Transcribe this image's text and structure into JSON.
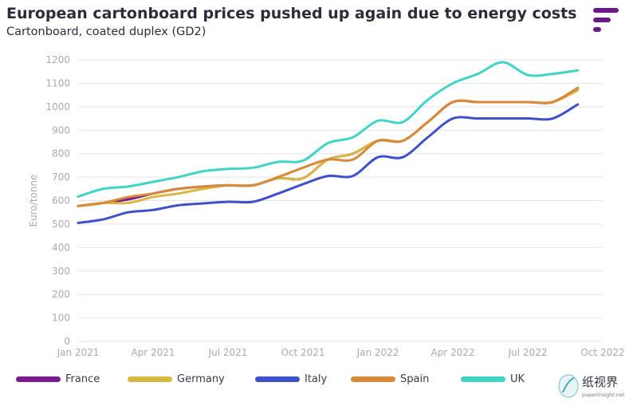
{
  "header": {
    "title": "European cartonboard prices pushed up again due to energy costs",
    "subtitle": "Cartonboard, coated duplex (GD2)"
  },
  "colors": {
    "brand": "#6b1a8a",
    "grid": "#e4e4ea",
    "axis_text": "#a9a9b6"
  },
  "watermark": {
    "text": "纸视界",
    "url_text": "paperinsight.net"
  },
  "chart_data": {
    "type": "line",
    "title": "European cartonboard prices pushed up again due to energy costs",
    "subtitle": "Cartonboard, coated duplex (GD2)",
    "xlabel": "",
    "ylabel": "Euro/tonne",
    "ylim": [
      0,
      1200
    ],
    "yticks": [
      0,
      100,
      200,
      300,
      400,
      500,
      600,
      700,
      800,
      900,
      1000,
      1100,
      1200
    ],
    "xlim": [
      0,
      21
    ],
    "xticks": [
      {
        "pos": 0,
        "label": "Jan 2021"
      },
      {
        "pos": 3,
        "label": "Apr 2021"
      },
      {
        "pos": 6,
        "label": "Jul 2021"
      },
      {
        "pos": 9,
        "label": "Oct 2021"
      },
      {
        "pos": 12,
        "label": "Jan 2022"
      },
      {
        "pos": 15,
        "label": "Apr 2022"
      },
      {
        "pos": 18,
        "label": "Jul 2022"
      },
      {
        "pos": 21,
        "label": "Oct 2022"
      }
    ],
    "grid": true,
    "legend_position": "bottom",
    "x": [
      0,
      1,
      2,
      3,
      4,
      5,
      6,
      7,
      8,
      9,
      10,
      11,
      12,
      13,
      14,
      15,
      16,
      17,
      18,
      19,
      20
    ],
    "series": [
      {
        "name": "France",
        "color": "#7a1c8e",
        "values": [
          577,
          590,
          605,
          630,
          650,
          660,
          665,
          665,
          695,
          695,
          775,
          800,
          855,
          855,
          935,
          1020,
          1020,
          1020,
          1020,
          1020,
          1080
        ]
      },
      {
        "name": "Germany",
        "color": "#d8b840",
        "values": [
          577,
          590,
          590,
          615,
          630,
          650,
          665,
          665,
          695,
          695,
          775,
          800,
          855,
          855,
          935,
          1020,
          1020,
          1020,
          1020,
          1020,
          1070
        ]
      },
      {
        "name": "Italy",
        "color": "#3f51c8",
        "values": [
          505,
          520,
          550,
          560,
          580,
          588,
          595,
          595,
          630,
          670,
          705,
          705,
          785,
          785,
          870,
          950,
          950,
          950,
          950,
          950,
          1010
        ]
      },
      {
        "name": "Spain",
        "color": "#d88a3a",
        "values": [
          577,
          590,
          615,
          630,
          650,
          660,
          665,
          665,
          700,
          740,
          775,
          775,
          855,
          855,
          935,
          1020,
          1020,
          1020,
          1020,
          1020,
          1080
        ]
      },
      {
        "name": "UK",
        "color": "#40d4c4",
        "values": [
          617,
          650,
          660,
          680,
          700,
          725,
          735,
          740,
          765,
          770,
          845,
          870,
          940,
          935,
          1030,
          1100,
          1140,
          1190,
          1135,
          1140,
          1155
        ]
      }
    ]
  }
}
